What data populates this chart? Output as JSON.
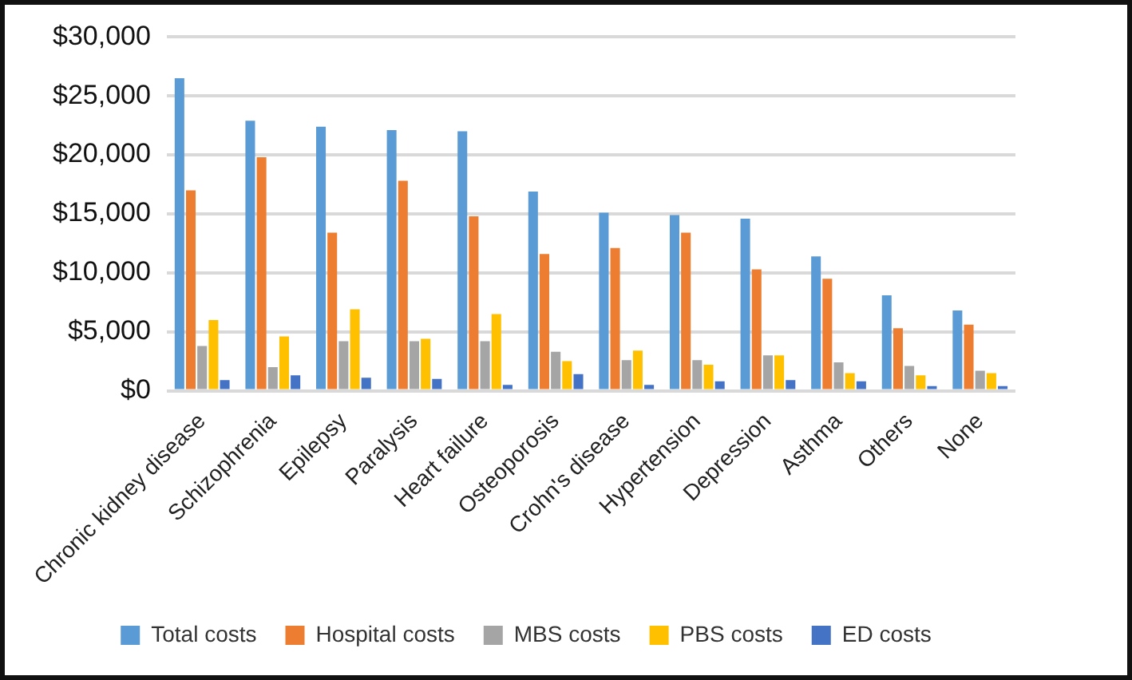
{
  "chart_data": {
    "type": "bar",
    "categories": [
      "Chronic kidney disease",
      "Schizophrenia",
      "Epilepsy",
      "Paralysis",
      "Heart failure",
      "Osteoporosis",
      "Crohn's disease",
      "Hypertension",
      "Depression",
      "Asthma",
      "Others",
      "None"
    ],
    "series": [
      {
        "name": "Total costs",
        "color": "#5b9bd5",
        "values": [
          26500,
          22900,
          22400,
          22100,
          22000,
          16900,
          15100,
          14900,
          14600,
          11400,
          8100,
          6800
        ]
      },
      {
        "name": "Hospital costs",
        "color": "#ed7d31",
        "values": [
          17000,
          19800,
          13400,
          17800,
          14800,
          11600,
          12100,
          13400,
          10300,
          9500,
          5300,
          5600
        ]
      },
      {
        "name": "MBS costs",
        "color": "#a5a5a5",
        "values": [
          3800,
          2000,
          4200,
          4200,
          4200,
          3300,
          2600,
          2600,
          3000,
          2400,
          2100,
          1700
        ]
      },
      {
        "name": "PBS costs",
        "color": "#ffc000",
        "values": [
          6000,
          4600,
          6900,
          4400,
          6500,
          2500,
          3400,
          2200,
          3000,
          1500,
          1300,
          1500
        ]
      },
      {
        "name": "ED costs",
        "color": "#4472c4",
        "values": [
          900,
          1300,
          1100,
          1000,
          500,
          1400,
          500,
          800,
          900,
          800,
          400,
          400
        ]
      }
    ],
    "ylim": [
      0,
      30000
    ],
    "yticks": [
      {
        "value": 0,
        "label": "$0"
      },
      {
        "value": 5000,
        "label": "$5,000"
      },
      {
        "value": 10000,
        "label": "$10,000"
      },
      {
        "value": 15000,
        "label": "$15,000"
      },
      {
        "value": 20000,
        "label": "$20,000"
      },
      {
        "value": 25000,
        "label": "$25,000"
      },
      {
        "value": 30000,
        "label": "$30,000"
      }
    ],
    "grid": "y",
    "legend": "bottom"
  }
}
